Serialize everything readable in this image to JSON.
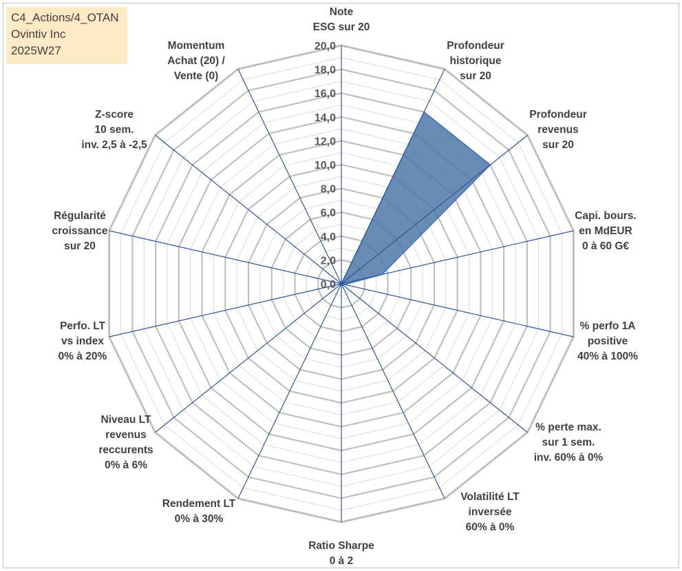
{
  "info_box": {
    "line1": "C4_Actions/4_OTAN",
    "line2": "Ovintiv Inc",
    "line3": "2025W27"
  },
  "colors": {
    "grid": "#bfbfbf",
    "spoke": "#2f5597",
    "fill": "#4f78a8",
    "info_box_bg": "#fde9c4"
  },
  "chart_data": {
    "type": "radar",
    "radial_range": [
      0,
      20
    ],
    "tick_step": 2,
    "tick_labels": [
      "0,0",
      "2,0",
      "4,0",
      "6,0",
      "8,0",
      "10,0",
      "12,0",
      "14,0",
      "16,0",
      "18,0",
      "20,0"
    ],
    "grid": true,
    "axes": [
      "Note\nESG sur 20",
      "Profondeur\nhistorique\nsur 20",
      "Profondeur\nrevenus\nsur 20",
      "Capi. bours.\nen MdEUR\n0 à 60 G€",
      "% perfo 1A\npositive\n40% à 100%",
      "% perte max.\nsur 1 sem.\ninv. 60% à 0%",
      "Volatilité LT\ninversée\n60% à 0%",
      "Ratio Sharpe\n0 à 2",
      "Rendement LT\n0% à 30%",
      "Niveau LT\nrevenus\nreccurents\n0% à 6%",
      "Perfo. LT\nvs index\n0% à 20%",
      "Régularité\ncroissance\nsur 20",
      "Z-score\n10 sem.\ninv. 2,5 à -2,5",
      "Momentum\nAchat (20) /\nVente (0)"
    ],
    "series": [
      {
        "values": [
          0,
          16,
          16,
          3.5,
          0.3,
          0,
          0,
          0,
          0,
          0,
          0,
          0,
          0,
          0
        ]
      }
    ]
  }
}
